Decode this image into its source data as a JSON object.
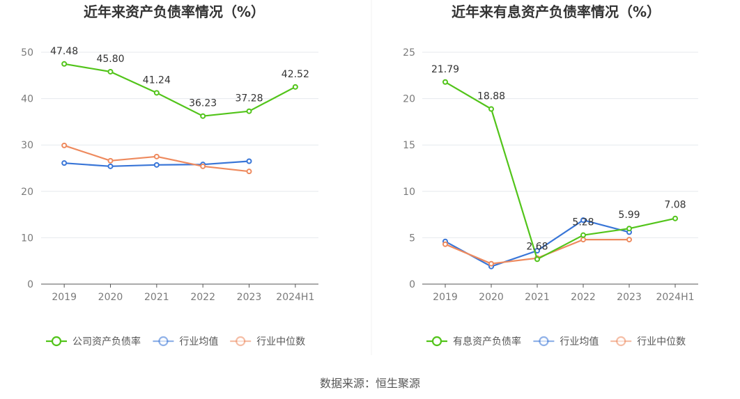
{
  "chart_data": [
    {
      "type": "line",
      "title": "近年来资产负债率情况（%）",
      "categories": [
        "2019",
        "2020",
        "2021",
        "2022",
        "2023",
        "2024H1"
      ],
      "ylim": [
        0,
        50
      ],
      "yticks": [
        "0",
        "10",
        "20",
        "30",
        "40",
        "50"
      ],
      "grid": true,
      "legend_position": "bottom",
      "series": [
        {
          "name": "公司资产负债率",
          "color": "#52c41a",
          "values": [
            47.48,
            45.8,
            41.24,
            36.23,
            37.28,
            42.52
          ],
          "labels": [
            "47.48",
            "45.80",
            "41.24",
            "36.23",
            "37.28",
            "42.52"
          ]
        },
        {
          "name": "行业均值",
          "color": "#3875d7",
          "values": [
            26.1,
            25.4,
            25.7,
            25.8,
            26.5,
            null
          ],
          "labels": []
        },
        {
          "name": "行业中位数",
          "color": "#ee8a5e",
          "values": [
            29.9,
            26.6,
            27.5,
            25.4,
            24.3,
            null
          ],
          "labels": []
        }
      ]
    },
    {
      "type": "line",
      "title": "近年来有息资产负债率情况（%）",
      "categories": [
        "2019",
        "2020",
        "2021",
        "2022",
        "2023",
        "2024H1"
      ],
      "ylim": [
        0,
        25
      ],
      "yticks": [
        "0",
        "5",
        "10",
        "15",
        "20",
        "25"
      ],
      "grid": true,
      "legend_position": "bottom",
      "series": [
        {
          "name": "有息资产负债率",
          "color": "#52c41a",
          "values": [
            21.79,
            18.88,
            2.68,
            5.28,
            5.99,
            7.08
          ],
          "labels": [
            "21.79",
            "18.88",
            "2.68",
            "5.28",
            "5.99",
            "7.08"
          ]
        },
        {
          "name": "行业均值",
          "color": "#3875d7",
          "values": [
            4.6,
            1.9,
            3.6,
            6.9,
            5.6,
            null
          ],
          "labels": []
        },
        {
          "name": "行业中位数",
          "color": "#ee8a5e",
          "values": [
            4.3,
            2.2,
            2.8,
            4.8,
            4.8,
            null
          ],
          "labels": []
        }
      ]
    }
  ],
  "source": "数据来源：恒生聚源"
}
